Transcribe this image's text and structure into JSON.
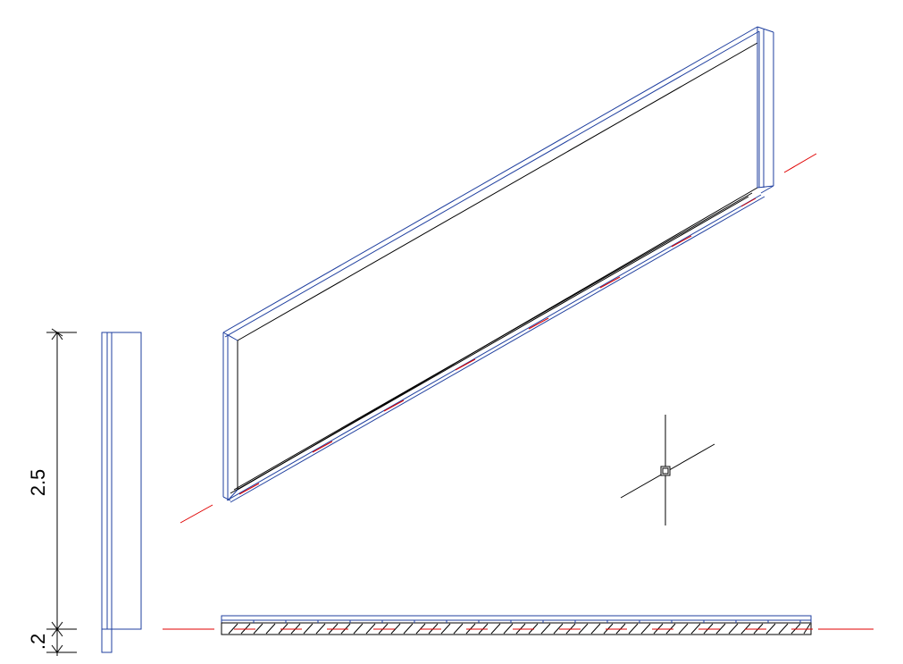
{
  "drawing": {
    "dimensions": {
      "height_label": "2.5",
      "thickness_label": ".2"
    },
    "colors": {
      "line": "#000000",
      "wall_outline": "#1f3f9f",
      "axis": "#e00000",
      "background": "#ffffff"
    },
    "icons": {
      "origin_marker": "crosshair-origin-icon"
    }
  }
}
